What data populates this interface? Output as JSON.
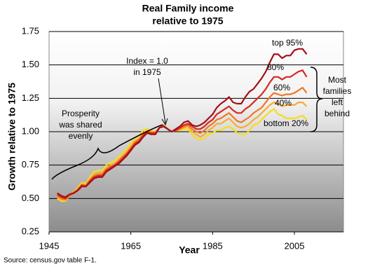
{
  "chart_data": {
    "type": "line",
    "title": [
      "Real Family income",
      "relative to 1975"
    ],
    "x_label": "Year",
    "y_label": "Growth relative to 1975",
    "source": "Source: census.gov table F-1.",
    "annotations": {
      "index": [
        "Index = 1.0",
        "in 1975"
      ],
      "prosperity": [
        "Prosperity",
        "was shared",
        "evenly"
      ],
      "behind": [
        "Most",
        "families",
        "left",
        "behind"
      ]
    },
    "xlim": [
      1945,
      2017
    ],
    "ylim": [
      0.25,
      1.75
    ],
    "xticks": [
      1945,
      1965,
      1985,
      2005
    ],
    "yticks": [
      0.25,
      {
        "value": 0.5,
        "label": "0.50"
      },
      0.75,
      {
        "value": 1,
        "label": "1.00"
      },
      1.25,
      {
        "value": 1.5,
        "label": "1.50"
      },
      1.75
    ],
    "grid": true,
    "x": [
      1947,
      1948,
      1949,
      1950,
      1951,
      1952,
      1953,
      1954,
      1955,
      1956,
      1957,
      1958,
      1959,
      1960,
      1961,
      1962,
      1963,
      1964,
      1965,
      1966,
      1967,
      1968,
      1969,
      1970,
      1971,
      1972,
      1973,
      1974,
      1975,
      1976,
      1977,
      1978,
      1979,
      1980,
      1981,
      1982,
      1983,
      1984,
      1985,
      1986,
      1987,
      1988,
      1989,
      1990,
      1991,
      1992,
      1993,
      1994,
      1995,
      1996,
      1997,
      1998,
      1999,
      2000,
      2001,
      2002,
      2003,
      2004,
      2005,
      2006,
      2007,
      2008
    ],
    "series": [
      {
        "name": "bottom 20%",
        "color": "#f5dc1e",
        "values": [
          0.5,
          0.48,
          0.48,
          0.52,
          0.55,
          0.58,
          0.62,
          0.61,
          0.66,
          0.7,
          0.71,
          0.71,
          0.75,
          0.77,
          0.78,
          0.81,
          0.84,
          0.87,
          0.91,
          0.95,
          0.97,
          1.01,
          1.02,
          1.01,
          1.0,
          1.03,
          1.05,
          1.02,
          1.0,
          1.01,
          1.01,
          1.02,
          1.02,
          0.98,
          0.95,
          0.94,
          0.95,
          0.98,
          0.99,
          1.01,
          1.01,
          1.03,
          1.04,
          1.02,
          0.99,
          0.98,
          0.98,
          1.01,
          1.05,
          1.06,
          1.09,
          1.12,
          1.15,
          1.17,
          1.13,
          1.12,
          1.1,
          1.1,
          1.1,
          1.11,
          1.12,
          1.09
        ]
      },
      {
        "name": "40%",
        "color": "#f7ac32",
        "values": [
          0.51,
          0.49,
          0.49,
          0.52,
          0.55,
          0.57,
          0.61,
          0.6,
          0.64,
          0.68,
          0.69,
          0.69,
          0.73,
          0.75,
          0.76,
          0.79,
          0.82,
          0.85,
          0.89,
          0.93,
          0.95,
          0.99,
          1.01,
          1.0,
          1.0,
          1.03,
          1.05,
          1.02,
          1.0,
          1.01,
          1.02,
          1.03,
          1.04,
          1.0,
          0.98,
          0.96,
          0.98,
          1.01,
          1.03,
          1.06,
          1.06,
          1.08,
          1.1,
          1.07,
          1.04,
          1.03,
          1.04,
          1.06,
          1.09,
          1.11,
          1.14,
          1.17,
          1.2,
          1.22,
          1.21,
          1.19,
          1.2,
          1.2,
          1.2,
          1.22,
          1.22,
          1.19
        ]
      },
      {
        "name": "60%",
        "color": "#ee7826",
        "values": [
          0.52,
          0.5,
          0.49,
          0.52,
          0.54,
          0.57,
          0.6,
          0.6,
          0.64,
          0.67,
          0.68,
          0.68,
          0.72,
          0.74,
          0.75,
          0.78,
          0.81,
          0.84,
          0.88,
          0.92,
          0.94,
          0.98,
          1.0,
          0.99,
          0.99,
          1.03,
          1.05,
          1.02,
          1.0,
          1.01,
          1.02,
          1.04,
          1.05,
          1.02,
          1.0,
          0.99,
          1.01,
          1.04,
          1.06,
          1.09,
          1.1,
          1.12,
          1.14,
          1.11,
          1.08,
          1.07,
          1.09,
          1.11,
          1.14,
          1.16,
          1.18,
          1.22,
          1.26,
          1.29,
          1.28,
          1.27,
          1.28,
          1.28,
          1.29,
          1.31,
          1.33,
          1.29
        ]
      },
      {
        "name": "80%",
        "color": "#d42a22",
        "values": [
          0.53,
          0.51,
          0.5,
          0.53,
          0.54,
          0.56,
          0.6,
          0.59,
          0.63,
          0.66,
          0.67,
          0.67,
          0.71,
          0.73,
          0.75,
          0.77,
          0.8,
          0.83,
          0.87,
          0.91,
          0.93,
          0.97,
          1.0,
          0.99,
          0.99,
          1.03,
          1.04,
          1.02,
          1.0,
          1.01,
          1.03,
          1.05,
          1.06,
          1.04,
          1.02,
          1.02,
          1.04,
          1.07,
          1.09,
          1.13,
          1.15,
          1.17,
          1.19,
          1.16,
          1.14,
          1.14,
          1.17,
          1.19,
          1.22,
          1.25,
          1.28,
          1.32,
          1.37,
          1.41,
          1.41,
          1.39,
          1.41,
          1.41,
          1.43,
          1.45,
          1.46,
          1.41
        ]
      },
      {
        "name": "top 95%",
        "color": "#a3101a",
        "values": [
          0.54,
          0.52,
          0.51,
          0.53,
          0.54,
          0.56,
          0.59,
          0.59,
          0.62,
          0.65,
          0.66,
          0.66,
          0.7,
          0.72,
          0.74,
          0.76,
          0.79,
          0.82,
          0.86,
          0.9,
          0.92,
          0.96,
          0.99,
          0.98,
          0.98,
          1.03,
          1.04,
          1.02,
          1.0,
          1.02,
          1.04,
          1.07,
          1.08,
          1.05,
          1.04,
          1.05,
          1.07,
          1.1,
          1.13,
          1.18,
          1.21,
          1.23,
          1.26,
          1.22,
          1.21,
          1.21,
          1.26,
          1.3,
          1.32,
          1.36,
          1.4,
          1.45,
          1.52,
          1.58,
          1.58,
          1.55,
          1.57,
          1.57,
          1.61,
          1.62,
          1.62,
          1.58
        ]
      }
    ]
  }
}
